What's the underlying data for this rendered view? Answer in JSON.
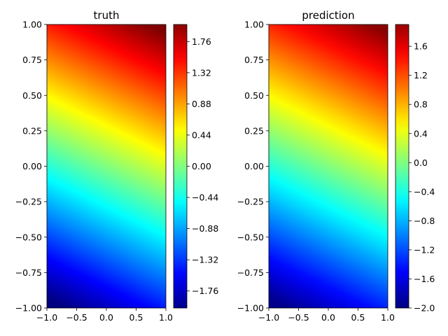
{
  "chart_data": [
    {
      "type": "heatmap",
      "title": "truth",
      "xlim": [
        -1.0,
        1.0
      ],
      "ylim": [
        -1.0,
        1.0
      ],
      "x_ticks": [
        "−1.0",
        "−0.5",
        "0.0",
        "0.5",
        "1.0"
      ],
      "x_tick_values": [
        -1.0,
        -0.5,
        0.0,
        0.5,
        1.0
      ],
      "y_ticks": [
        "−1.00",
        "−0.75",
        "−0.50",
        "−0.25",
        "0.00",
        "0.25",
        "0.50",
        "0.75",
        "1.00"
      ],
      "y_tick_values": [
        -1.0,
        -0.75,
        -0.5,
        -0.25,
        0.0,
        0.25,
        0.5,
        0.75,
        1.0
      ],
      "colormap": "jet",
      "field": {
        "form": "linear",
        "a_x": 1.1,
        "a_y": 0.95,
        "value_range": [
          -2.05,
          2.05
        ]
      },
      "colorbar": {
        "range": [
          -2.0,
          2.0
        ],
        "ticks": [
          "−1.76",
          "−1.32",
          "−0.88",
          "−0.44",
          "0.00",
          "0.44",
          "0.88",
          "1.32",
          "1.76"
        ],
        "tick_values": [
          -1.76,
          -1.32,
          -0.88,
          -0.44,
          0.0,
          0.44,
          0.88,
          1.32,
          1.76
        ]
      }
    },
    {
      "type": "heatmap",
      "title": "prediction",
      "xlim": [
        -1.0,
        1.0
      ],
      "ylim": [
        -1.0,
        1.0
      ],
      "x_ticks": [
        "−1.0",
        "−0.5",
        "0.0",
        "0.5",
        "1.0"
      ],
      "x_tick_values": [
        -1.0,
        -0.5,
        0.0,
        0.5,
        1.0
      ],
      "y_ticks": [
        "−1.00",
        "−0.75",
        "−0.50",
        "−0.25",
        "0.00",
        "0.25",
        "0.50",
        "0.75",
        "1.00"
      ],
      "y_tick_values": [
        -1.0,
        -0.75,
        -0.5,
        -0.25,
        0.0,
        0.25,
        0.5,
        0.75,
        1.0
      ],
      "colormap": "jet",
      "field": {
        "form": "linear",
        "a_x": 1.05,
        "a_y": 0.9,
        "value_range": [
          -2.0,
          2.0
        ]
      },
      "colorbar": {
        "range": [
          -2.0,
          1.9
        ],
        "ticks": [
          "−2.0",
          "−1.6",
          "−1.2",
          "−0.8",
          "−0.4",
          "0.0",
          "0.4",
          "0.8",
          "1.2",
          "1.6"
        ],
        "tick_values": [
          -2.0,
          -1.6,
          -1.2,
          -0.8,
          -0.4,
          0.0,
          0.4,
          0.8,
          1.2,
          1.6
        ]
      }
    }
  ]
}
